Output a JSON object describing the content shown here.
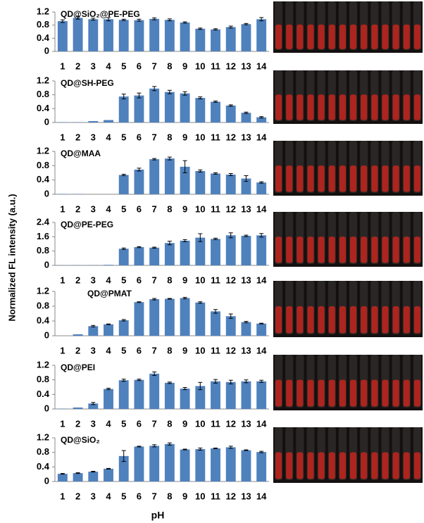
{
  "shared": {
    "y_label": "Normalized FL intensity (a.u.)",
    "x_label": "pH"
  },
  "chart_data": [
    {
      "type": "bar",
      "title": "QD@SiO₂@PE-PEG",
      "categories": [
        "1",
        "2",
        "3",
        "4",
        "5",
        "6",
        "7",
        "8",
        "9",
        "10",
        "11",
        "12",
        "13",
        "14"
      ],
      "values": [
        0.92,
        1.02,
        0.98,
        0.98,
        0.96,
        0.95,
        0.99,
        0.96,
        0.88,
        0.69,
        0.67,
        0.74,
        0.83,
        0.98
      ],
      "errors": [
        0.04,
        0.04,
        0.03,
        0.05,
        0.02,
        0.03,
        0.03,
        0.03,
        0.02,
        0.02,
        0.02,
        0.03,
        0.02,
        0.05
      ],
      "color": "#4f81bd",
      "ylim": [
        0,
        1.2
      ],
      "yticks": [
        0,
        0.4,
        0.8,
        1.2
      ]
    },
    {
      "type": "bar",
      "title": "QD@SH-PEG",
      "categories": [
        "1",
        "2",
        "3",
        "4",
        "5",
        "6",
        "7",
        "8",
        "9",
        "10",
        "11",
        "12",
        "13",
        "14"
      ],
      "values": [
        0.01,
        0.01,
        0.04,
        0.07,
        0.75,
        0.78,
        0.98,
        0.88,
        0.84,
        0.71,
        0.6,
        0.49,
        0.28,
        0.15
      ],
      "errors": [
        0,
        0,
        0,
        0,
        0.07,
        0.07,
        0.06,
        0.05,
        0.05,
        0.03,
        0.02,
        0.02,
        0.02,
        0.02
      ],
      "color": "#4f81bd",
      "ylim": [
        0,
        1.2
      ],
      "yticks": [
        0,
        0.4,
        0.8,
        1.2
      ]
    },
    {
      "type": "bar",
      "title": "QD@MAA",
      "categories": [
        "1",
        "2",
        "3",
        "4",
        "5",
        "6",
        "7",
        "8",
        "9",
        "10",
        "11",
        "12",
        "13",
        "14"
      ],
      "values": [
        0.01,
        0.01,
        0,
        0,
        0.54,
        0.69,
        0.98,
        1.0,
        0.77,
        0.65,
        0.58,
        0.55,
        0.44,
        0.33
      ],
      "errors": [
        0,
        0,
        0,
        0,
        0.02,
        0.04,
        0.02,
        0.04,
        0.17,
        0.03,
        0.02,
        0.03,
        0.08,
        0.02
      ],
      "color": "#4f81bd",
      "ylim": [
        0,
        1.2
      ],
      "yticks": [
        0,
        0.4,
        0.8,
        1.2
      ]
    },
    {
      "type": "bar",
      "title": "QD@PE-PEG",
      "categories": [
        "1",
        "2",
        "3",
        "4",
        "5",
        "6",
        "7",
        "8",
        "9",
        "10",
        "11",
        "12",
        "13",
        "14"
      ],
      "values": [
        0.01,
        0.01,
        0.01,
        0.03,
        0.93,
        1.02,
        0.99,
        1.25,
        1.38,
        1.55,
        1.48,
        1.68,
        1.65,
        1.68
      ],
      "errors": [
        0,
        0,
        0,
        0,
        0.04,
        0.03,
        0.03,
        0.1,
        0.06,
        0.22,
        0.04,
        0.14,
        0.04,
        0.1
      ],
      "color": "#4f81bd",
      "ylim": [
        0,
        2.4
      ],
      "yticks": [
        0,
        0.8,
        1.6,
        2.4
      ]
    },
    {
      "type": "bar",
      "title": "QD@PMAT",
      "categories": [
        "1",
        "2",
        "3",
        "4",
        "5",
        "6",
        "7",
        "8",
        "9",
        "10",
        "11",
        "12",
        "13",
        "14"
      ],
      "values": [
        0,
        0.04,
        0.26,
        0.31,
        0.42,
        0.91,
        0.99,
        1.0,
        1.02,
        0.9,
        0.66,
        0.53,
        0.37,
        0.33
      ],
      "errors": [
        0,
        0,
        0.02,
        0.01,
        0.02,
        0.01,
        0.02,
        0.01,
        0.02,
        0.02,
        0.05,
        0.06,
        0.02,
        0.01
      ],
      "color": "#4f81bd",
      "ylim": [
        0,
        1.2
      ],
      "yticks": [
        0,
        0.4,
        0.8,
        1.2
      ]
    },
    {
      "type": "bar",
      "title": "QD@PEI",
      "categories": [
        "1",
        "2",
        "3",
        "4",
        "5",
        "6",
        "7",
        "8",
        "9",
        "10",
        "11",
        "12",
        "13",
        "14"
      ],
      "values": [
        0.01,
        0.04,
        0.15,
        0.55,
        0.79,
        0.8,
        0.97,
        0.72,
        0.56,
        0.63,
        0.76,
        0.74,
        0.76,
        0.76
      ],
      "errors": [
        0,
        0,
        0.03,
        0.02,
        0.03,
        0.02,
        0.05,
        0.02,
        0.03,
        0.1,
        0.05,
        0.05,
        0.04,
        0.03
      ],
      "color": "#4f81bd",
      "ylim": [
        0,
        1.2
      ],
      "yticks": [
        0,
        0.4,
        0.8,
        1.2
      ]
    },
    {
      "type": "bar",
      "title": "QD@SiO₂",
      "categories": [
        "1",
        "2",
        "3",
        "4",
        "5",
        "6",
        "7",
        "8",
        "9",
        "10",
        "11",
        "12",
        "13",
        "14"
      ],
      "values": [
        0.21,
        0.23,
        0.27,
        0.35,
        0.7,
        0.96,
        0.98,
        1.03,
        0.88,
        0.89,
        0.91,
        0.94,
        0.86,
        0.81
      ],
      "errors": [
        0.01,
        0.01,
        0.01,
        0.01,
        0.15,
        0.01,
        0.03,
        0.03,
        0.01,
        0.03,
        0.01,
        0.03,
        0.01,
        0.02
      ],
      "color": "#4f81bd",
      "ylim": [
        0,
        1.2
      ],
      "yticks": [
        0,
        0.4,
        0.8,
        1.2
      ]
    }
  ]
}
